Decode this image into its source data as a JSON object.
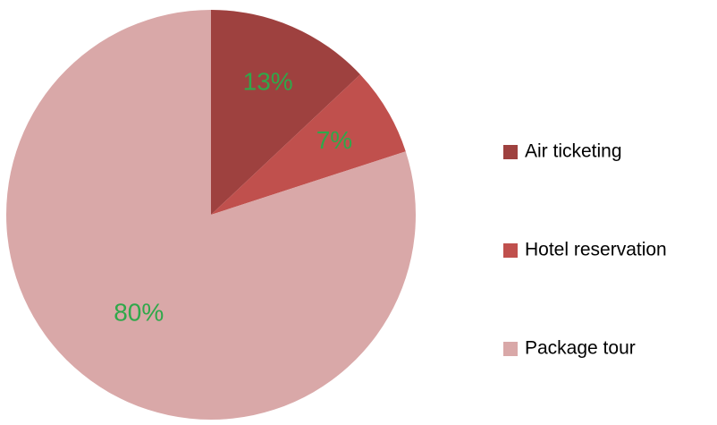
{
  "chart_data": {
    "type": "pie",
    "categories": [
      "Air ticketing",
      "Hotel reservation",
      "Package tour"
    ],
    "values": [
      13,
      7,
      80
    ],
    "value_labels": [
      "13%",
      "7%",
      "80%"
    ],
    "colors": [
      "#9e413f",
      "#c0504d",
      "#d9a8a8"
    ],
    "label_color": "#2fa84a",
    "legend": "right"
  }
}
